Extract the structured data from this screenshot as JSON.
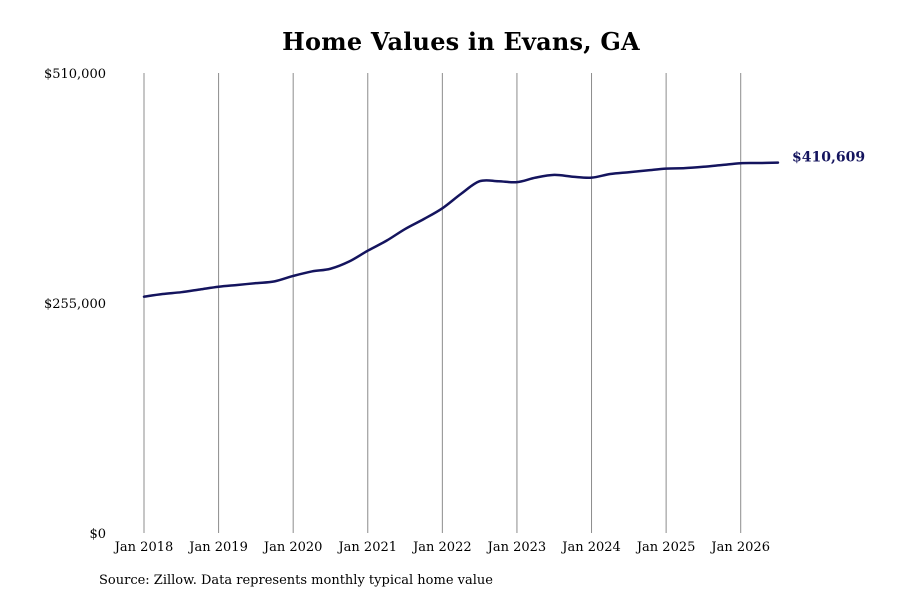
{
  "chart_data": {
    "type": "line",
    "title": "Home Values in Evans, GA",
    "xlabel": "",
    "ylabel": "",
    "x_tick_labels": [
      "Jan 2018",
      "Jan 2019",
      "Jan 2020",
      "Jan 2021",
      "Jan 2022",
      "Jan 2023",
      "Jan 2024",
      "Jan 2025",
      "Jan 2026"
    ],
    "y_tick_labels": [
      "$510,000",
      "$255,000",
      "$0"
    ],
    "ylim": [
      0,
      510000
    ],
    "xlim": [
      "2018-01",
      "2026-07"
    ],
    "grid": "vertical lines at January of each year",
    "series": [
      {
        "color": "#14145e",
        "points": [
          [
            "2018-01",
            262000
          ],
          [
            "2018-04",
            265000
          ],
          [
            "2018-07",
            267000
          ],
          [
            "2018-10",
            270000
          ],
          [
            "2019-01",
            273000
          ],
          [
            "2019-04",
            275000
          ],
          [
            "2019-07",
            277000
          ],
          [
            "2019-10",
            279000
          ],
          [
            "2020-01",
            285000
          ],
          [
            "2020-04",
            290000
          ],
          [
            "2020-07",
            293000
          ],
          [
            "2020-10",
            301000
          ],
          [
            "2021-01",
            313000
          ],
          [
            "2021-04",
            324000
          ],
          [
            "2021-07",
            337000
          ],
          [
            "2021-10",
            348000
          ],
          [
            "2022-01",
            360000
          ],
          [
            "2022-04",
            376000
          ],
          [
            "2022-07",
            390000
          ],
          [
            "2022-10",
            390000
          ],
          [
            "2023-01",
            389000
          ],
          [
            "2023-04",
            394000
          ],
          [
            "2023-07",
            397000
          ],
          [
            "2023-10",
            395000
          ],
          [
            "2024-01",
            394000
          ],
          [
            "2024-04",
            398000
          ],
          [
            "2024-07",
            400000
          ],
          [
            "2024-10",
            402000
          ],
          [
            "2025-01",
            404000
          ],
          [
            "2025-04",
            404500
          ],
          [
            "2025-07",
            406000
          ],
          [
            "2025-10",
            408000
          ],
          [
            "2026-01",
            410000
          ],
          [
            "2026-04",
            410200
          ],
          [
            "2026-07",
            410609
          ]
        ]
      }
    ],
    "end_label": "$410,609",
    "source": "Source: Zillow. Data represents monthly typical home value"
  }
}
